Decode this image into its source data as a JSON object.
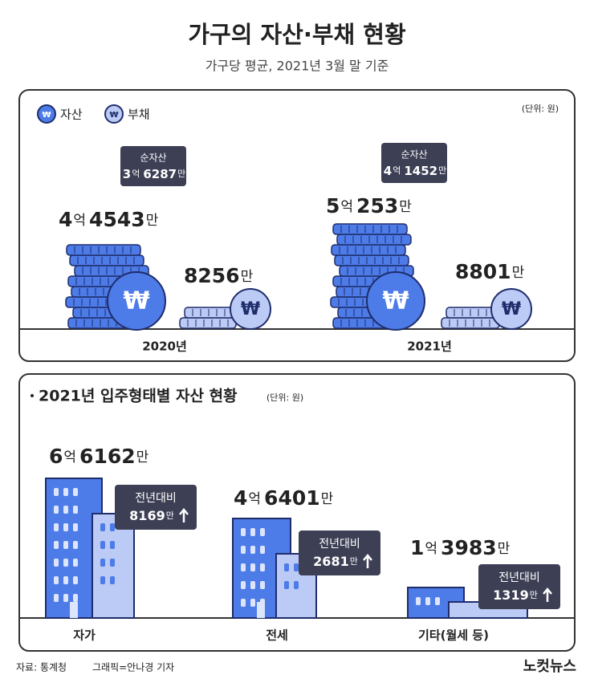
{
  "header": {
    "title": "가구의 자산·부채 현황",
    "subtitle": "가구당 평균, 2021년 3월 말 기준"
  },
  "assets_debt": {
    "legend": [
      "자산",
      "부채"
    ],
    "currency_symbol": "₩",
    "unit": "(단위: 원)",
    "years": [
      {
        "year": "2020년",
        "net_label": "순자산",
        "net": [
          "3",
          "억",
          "6287",
          "만"
        ],
        "assets": [
          "4",
          "억",
          "4543",
          "만"
        ],
        "debt": [
          "8256",
          "만"
        ]
      },
      {
        "year": "2021년",
        "net_label": "순자산",
        "net": [
          "4",
          "억",
          "1452",
          "만"
        ],
        "assets": [
          "5",
          "억",
          "253",
          "만"
        ],
        "debt": [
          "8801",
          "만"
        ]
      }
    ]
  },
  "housing": {
    "title": "2021년 입주형태별 자산 현황",
    "unit": "(단위: 원)",
    "items": [
      {
        "label": "자가",
        "value": [
          "6",
          "억",
          "6162",
          "만"
        ],
        "change_label": "전년대비",
        "change": [
          "8169",
          "만"
        ]
      },
      {
        "label": "전세",
        "value": [
          "4",
          "억",
          "6401",
          "만"
        ],
        "change_label": "전년대비",
        "change": [
          "2681",
          "만"
        ]
      },
      {
        "label": "기타(월세 등)",
        "value": [
          "1",
          "억",
          "3983",
          "만"
        ],
        "change_label": "전년대비",
        "change": [
          "1319",
          "만"
        ]
      }
    ]
  },
  "footer": {
    "source": "자료: 통계청",
    "credit": "그래픽=안나경 기자",
    "logo": "노컷뉴스"
  }
}
